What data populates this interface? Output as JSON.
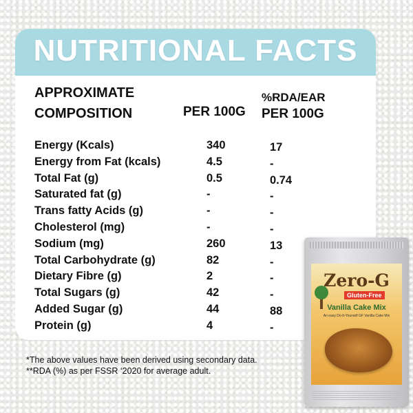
{
  "title": "NUTRITIONAL FACTS",
  "headers": {
    "composition_line1": "APPROXIMATE",
    "composition_line2": "COMPOSITION",
    "per100g": "PER 100G",
    "rda_line1": "%RDA/EAR",
    "rda_line2": "PER 100G"
  },
  "rows": [
    {
      "name": "Energy (Kcals)",
      "per100g": "340",
      "rda": "17"
    },
    {
      "name": "Energy from Fat (kcals)",
      "per100g": "4.5",
      "rda": "-"
    },
    {
      "name": "Total Fat (g)",
      "per100g": "0.5",
      "rda": "0.74"
    },
    {
      "name": "Saturated fat (g)",
      "per100g": "-",
      "rda": "-"
    },
    {
      "name": "Trans fatty Acids (g)",
      "per100g": "-",
      "rda": "-"
    },
    {
      "name": "Cholesterol (mg)",
      "per100g": "-",
      "rda": "-"
    },
    {
      "name": "Sodium (mg)",
      "per100g": "260",
      "rda": "13"
    },
    {
      "name": "Total Carbohydrate (g)",
      "per100g": "82",
      "rda": "-"
    },
    {
      "name": "Dietary Fibre (g)",
      "per100g": "2",
      "rda": "-"
    },
    {
      "name": "Total Sugars (g)",
      "per100g": "42",
      "rda": "-"
    },
    {
      "name": "Added Sugar (g)",
      "per100g": "44",
      "rda": "88"
    },
    {
      "name": "Protein (g)",
      "per100g": "4",
      "rda": "-"
    }
  ],
  "notes": {
    "note1": "*The above values have been derived using secondary data.",
    "note2": "**RDA (%) as per FSSR ‘2020 for average adult."
  },
  "package": {
    "brand": "Zero-G",
    "badge": "Gluten-Free",
    "product": "Vanilla Cake Mix",
    "tagline": "An easy Do-It-Yourself GF Vanilla Cake Mix"
  },
  "colors": {
    "title_band": "#a9d9e3",
    "title_text": "#ffffff",
    "body_text": "#111111"
  }
}
